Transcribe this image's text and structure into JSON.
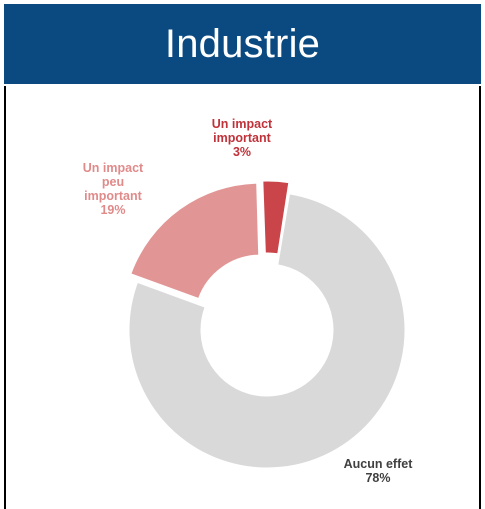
{
  "header": {
    "title": "Industrie"
  },
  "colors": {
    "header_bg": "#0b4a80",
    "aucun_effet": "#d9d9d9",
    "peu_important": "#e29595",
    "important": "#c9454a",
    "label_aucun": "#404040",
    "label_peu": "#e08a8a",
    "label_important": "#c0323a"
  },
  "chart_data": {
    "type": "pie",
    "title": "Industrie",
    "variant": "donut",
    "slices": [
      {
        "label_lines": [
          "Un impact",
          "important"
        ],
        "pct_text": "3%",
        "value": 3,
        "color": "#c9454a",
        "label_color": "#c0323a",
        "exploded": true
      },
      {
        "label_lines": [
          "Aucun effet"
        ],
        "pct_text": "78%",
        "value": 78,
        "color": "#d9d9d9",
        "label_color": "#404040",
        "exploded": false
      },
      {
        "label_lines": [
          "Un impact",
          "peu",
          "important"
        ],
        "pct_text": "19%",
        "value": 19,
        "color": "#e29595",
        "label_color": "#e08a8a",
        "exploded": true
      }
    ],
    "legend": "none"
  }
}
